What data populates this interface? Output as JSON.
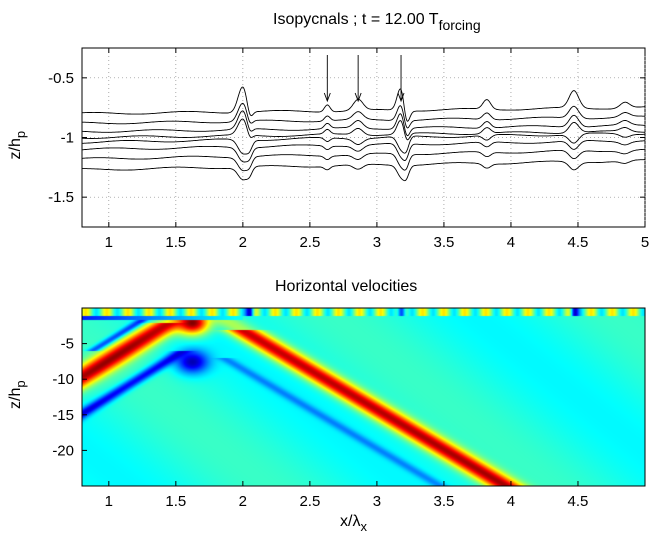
{
  "chart_data": [
    {
      "type": "line",
      "title": "Isopycnals ; t = 12.00 T",
      "title_sub": "forcing",
      "ylabel": "z/h",
      "ylabel_sub": "p",
      "xlabel": "",
      "xlim": [
        0.8,
        5.0
      ],
      "ylim": [
        -1.75,
        -0.25
      ],
      "grid": true,
      "xticks": [
        1,
        1.5,
        2,
        2.5,
        3,
        3.5,
        4,
        4.5,
        5
      ],
      "xtick_labels": [
        "1",
        "1.5",
        "2",
        "2.5",
        "3",
        "3.5",
        "4",
        "4.5",
        "5"
      ],
      "yticks": [
        -0.5,
        -1,
        -1.5
      ],
      "ytick_labels": [
        "-0.5",
        "-1",
        "-1.5"
      ],
      "line_color": "#000000",
      "baselines": [
        -0.8,
        -0.88,
        -0.95,
        -1.0,
        -1.04,
        -1.1,
        -1.18,
        -1.27
      ],
      "series_note_baselines_are_levels_at_x0.8": true,
      "features": [
        {
          "x": 2.0,
          "amplitude": 0.22,
          "width": 0.05
        },
        {
          "x": 2.05,
          "amplitude": -0.1,
          "width": 0.03
        },
        {
          "x": 2.63,
          "amplitude": 0.06,
          "width": 0.03
        },
        {
          "x": 2.86,
          "amplitude": 0.1,
          "width": 0.05
        },
        {
          "x": 3.18,
          "amplitude": 0.2,
          "width": 0.04
        },
        {
          "x": 3.22,
          "amplitude": -0.16,
          "width": 0.03
        },
        {
          "x": 3.82,
          "amplitude": 0.08,
          "width": 0.04
        },
        {
          "x": 4.47,
          "amplitude": 0.16,
          "width": 0.05
        },
        {
          "x": 4.85,
          "amplitude": 0.05,
          "width": 0.05
        }
      ],
      "arrows_x": [
        2.63,
        2.86,
        3.18
      ]
    },
    {
      "type": "heatmap",
      "title": "Horizontal velocities",
      "xlabel": "x/λ",
      "xlabel_sub": "x",
      "ylabel": "z/h",
      "ylabel_sub": "p",
      "xlim": [
        0.8,
        5.0
      ],
      "ylim": [
        -25,
        0
      ],
      "xticks": [
        1,
        1.5,
        2,
        2.5,
        3,
        3.5,
        4,
        4.5
      ],
      "xtick_labels": [
        "1",
        "1.5",
        "2",
        "2.5",
        "3",
        "3.5",
        "4",
        "4.5"
      ],
      "yticks": [
        -5,
        -10,
        -15,
        -20
      ],
      "ytick_labels": [
        "-5",
        "-10",
        "-15",
        "-20"
      ],
      "colormap": "jet",
      "background_level": 0.4,
      "beams": [
        {
          "x_at_top": 1.62,
          "slope_per_unit_x": 11.7,
          "direction": "down-left",
          "level": 0.95,
          "width": 0.12
        },
        {
          "x_at_top": 1.62,
          "slope_per_unit_x": 11.7,
          "direction": "down-left-lower",
          "level": 0.15,
          "width": 0.09
        },
        {
          "x_at_top": 1.62,
          "slope_per_unit_x": 11.7,
          "direction": "down-right",
          "level": 0.92,
          "width": 0.13
        }
      ],
      "blobs": [
        {
          "x": 1.62,
          "z": -2.0,
          "level": 1.0
        },
        {
          "x": 1.62,
          "z": -7.5,
          "level": 0.05
        }
      ],
      "surface_spots_x": [
        2.05,
        3.18,
        4.47
      ]
    }
  ]
}
